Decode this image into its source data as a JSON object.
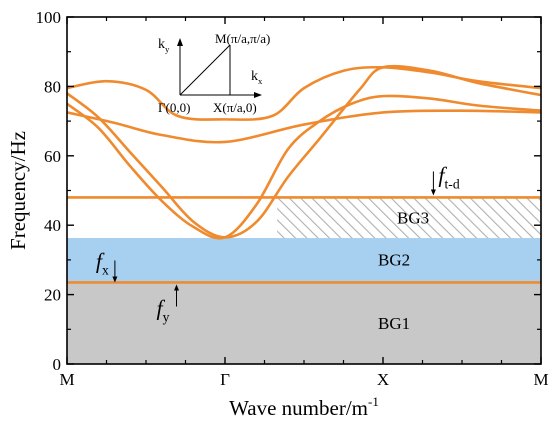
{
  "chart_data": {
    "type": "line",
    "xlabel": "Wave number/m",
    "xlabel_sup": "-1",
    "ylabel": "Frequency/Hz",
    "ylim": [
      0,
      100
    ],
    "yticks": [
      0,
      20,
      40,
      60,
      80,
      100
    ],
    "x_ticks": [
      {
        "pos": 0,
        "label": "M"
      },
      {
        "pos": 1,
        "label": "Γ"
      },
      {
        "pos": 2,
        "label": "X"
      },
      {
        "pos": 3,
        "label": "M"
      }
    ],
    "xlim": [
      0,
      3
    ],
    "grid": false,
    "line_color": "#ef8a2e",
    "series": [
      {
        "values": [
          [
            0,
            79.5
          ],
          [
            0.25,
            81.5
          ],
          [
            0.5,
            79
          ],
          [
            0.7,
            71.5
          ],
          [
            1,
            70.5
          ],
          [
            1.3,
            71.5
          ],
          [
            1.5,
            79.5
          ],
          [
            1.75,
            84.5
          ],
          [
            2,
            85.5
          ],
          [
            2.3,
            84
          ],
          [
            2.6,
            81.5
          ],
          [
            3,
            79.5
          ]
        ]
      },
      {
        "values": [
          [
            0,
            78
          ],
          [
            0.2,
            71
          ],
          [
            0.4,
            61
          ],
          [
            0.6,
            51
          ],
          [
            0.8,
            41
          ],
          [
            1,
            36.5
          ],
          [
            1.2,
            41
          ],
          [
            1.4,
            54
          ],
          [
            1.6,
            65
          ],
          [
            1.85,
            79
          ],
          [
            2,
            85.5
          ],
          [
            2.3,
            84.5
          ],
          [
            2.6,
            81
          ],
          [
            3,
            77.5
          ]
        ]
      },
      {
        "values": [
          [
            0,
            75
          ],
          [
            0.2,
            68
          ],
          [
            0.4,
            57
          ],
          [
            0.6,
            47
          ],
          [
            0.8,
            39.5
          ],
          [
            1,
            36.5
          ],
          [
            1.2,
            46
          ],
          [
            1.4,
            62
          ],
          [
            1.6,
            70
          ],
          [
            1.8,
            75
          ],
          [
            2,
            77.2
          ],
          [
            2.3,
            76.5
          ],
          [
            2.6,
            74.5
          ],
          [
            3,
            73
          ]
        ]
      },
      {
        "values": [
          [
            0,
            72.5
          ],
          [
            0.3,
            69.5
          ],
          [
            0.6,
            66
          ],
          [
            1,
            64
          ],
          [
            1.5,
            69
          ],
          [
            2,
            72.5
          ],
          [
            2.5,
            73
          ],
          [
            3,
            72.5
          ]
        ]
      },
      {
        "values": [
          [
            0,
            48
          ],
          [
            3,
            48
          ]
        ]
      },
      {
        "values": [
          [
            0,
            23.5
          ],
          [
            3,
            23.5
          ]
        ]
      }
    ],
    "bands": [
      {
        "label": "BG1",
        "y": [
          0,
          23.5
        ],
        "color": "#c8c8c8"
      },
      {
        "label": "BG2",
        "y": [
          23.8,
          36.3
        ],
        "color": "#a6cff0"
      },
      {
        "label": "BG3",
        "y": [
          36.3,
          48
        ],
        "x_from": 1.33,
        "pattern": "hatch"
      }
    ],
    "annotations": [
      {
        "base": "f",
        "sub": "t-d",
        "x": 2.3,
        "y": 48
      },
      {
        "base": "f",
        "sub": "x",
        "x": 0.05,
        "y": 23.5
      },
      {
        "base": "f",
        "sub": "y",
        "x": 0.75,
        "y": 23.5
      }
    ],
    "inset": {
      "origin_label": "Γ(0,0)",
      "x_label": "X(π/a,0)",
      "m_label": "M(π/a,π/a)",
      "kx_base": "k",
      "kx_sub": "x",
      "ky_base": "k",
      "ky_sub": "y"
    }
  }
}
